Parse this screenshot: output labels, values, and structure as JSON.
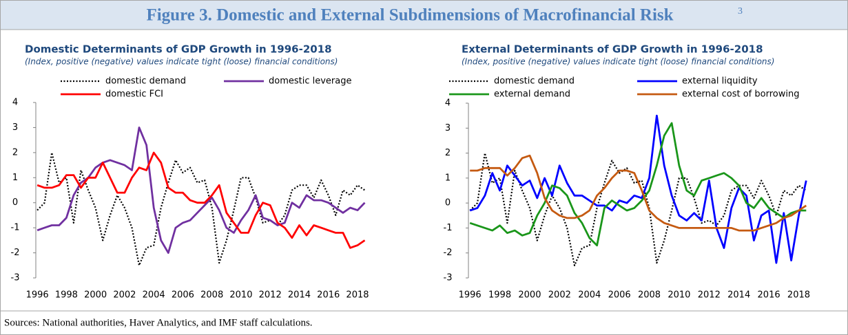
{
  "title": "Figure 3. Domestic and External Subdimensions of Macrofinancial Risk",
  "footnote_marker": "3",
  "source": "Sources: National authorities, Haver Analytics, and IMF staff calculations.",
  "chart_data": [
    {
      "type": "line",
      "title": "Domestic Determinants of GDP Growth in 1996-2018",
      "subtitle": "(Index, positive (negative) values indicate tight (loose) financial conditions)",
      "x": [
        1996,
        1996.5,
        1997,
        1997.5,
        1998,
        1998.5,
        1999,
        1999.5,
        2000,
        2000.5,
        2001,
        2001.5,
        2002,
        2002.5,
        2003,
        2003.5,
        2004,
        2004.5,
        2005,
        2005.5,
        2006,
        2006.5,
        2007,
        2007.5,
        2008,
        2008.5,
        2009,
        2009.5,
        2010,
        2010.5,
        2011,
        2011.5,
        2012,
        2012.5,
        2013,
        2013.5,
        2014,
        2014.5,
        2015,
        2015.5,
        2016,
        2016.5,
        2017,
        2017.5,
        2018,
        2018.5
      ],
      "series": [
        {
          "name": "domestic demand",
          "color": "#000000",
          "style": "dotted",
          "values": [
            -0.3,
            0,
            2.0,
            0.8,
            1.0,
            -0.8,
            1.3,
            0.5,
            -0.2,
            -1.5,
            -0.5,
            0.3,
            -0.2,
            -1.0,
            -2.5,
            -1.8,
            -1.7,
            -0.2,
            0.8,
            1.7,
            1.2,
            1.4,
            0.8,
            0.9,
            -0.2,
            -2.4,
            -1.5,
            -0.3,
            1.0,
            1.0,
            0.2,
            -0.8,
            -0.7,
            -0.9,
            -0.5,
            0.5,
            0.7,
            0.7,
            0.2,
            0.9,
            0.3,
            -0.5,
            0.5,
            0.3,
            0.7,
            0.5
          ]
        },
        {
          "name": "domestic leverage",
          "color": "#7030a0",
          "style": "solid",
          "values": [
            -1.1,
            -1.0,
            -0.9,
            -0.9,
            -0.6,
            0.3,
            0.8,
            1.0,
            1.4,
            1.6,
            1.7,
            1.6,
            1.5,
            1.3,
            3.0,
            2.3,
            -0.2,
            -1.5,
            -2.0,
            -1.0,
            -0.8,
            -0.7,
            -0.4,
            -0.1,
            0.2,
            -0.3,
            -1.0,
            -1.2,
            -0.7,
            -0.3,
            0.3,
            -0.6,
            -0.7,
            -0.9,
            -0.8,
            0.0,
            -0.2,
            0.3,
            0.1,
            0.1,
            0.0,
            -0.2,
            -0.4,
            -0.2,
            -0.3,
            0.0
          ]
        },
        {
          "name": "domestic FCI",
          "color": "#ff0000",
          "style": "solid",
          "values": [
            0.7,
            0.6,
            0.6,
            0.7,
            1.1,
            1.1,
            0.6,
            1.0,
            1.0,
            1.6,
            1.0,
            0.4,
            0.4,
            1.0,
            1.4,
            1.3,
            2.0,
            1.6,
            0.6,
            0.4,
            0.4,
            0.1,
            0.0,
            0.0,
            0.3,
            0.7,
            -0.4,
            -0.8,
            -1.2,
            -1.2,
            -0.5,
            0.0,
            -0.1,
            -0.8,
            -1.0,
            -1.4,
            -0.9,
            -1.3,
            -0.9,
            -1.0,
            -1.1,
            -1.2,
            -1.2,
            -1.8,
            -1.7,
            -1.5
          ]
        }
      ],
      "xlim": [
        1995.9,
        2018.9
      ],
      "ylim": [
        -3,
        4
      ],
      "xticks": [
        1996,
        1998,
        2000,
        2002,
        2004,
        2006,
        2008,
        2010,
        2012,
        2014,
        2016,
        2018
      ],
      "yticks": [
        -3,
        -2,
        -1,
        0,
        1,
        2,
        3,
        4
      ]
    },
    {
      "type": "line",
      "title": "External Determinants of GDP Growth in 1996-2018",
      "subtitle": "(Index, positive (negative) values indicate tight (loose) financial conditions)",
      "x": [
        1996,
        1996.5,
        1997,
        1997.5,
        1998,
        1998.5,
        1999,
        1999.5,
        2000,
        2000.5,
        2001,
        2001.5,
        2002,
        2002.5,
        2003,
        2003.5,
        2004,
        2004.5,
        2005,
        2005.5,
        2006,
        2006.5,
        2007,
        2007.5,
        2008,
        2008.5,
        2009,
        2009.5,
        2010,
        2010.5,
        2011,
        2011.5,
        2012,
        2012.5,
        2013,
        2013.5,
        2014,
        2014.5,
        2015,
        2015.5,
        2016,
        2016.5,
        2017,
        2017.5,
        2018,
        2018.5
      ],
      "series": [
        {
          "name": "domestic demand",
          "color": "#000000",
          "style": "dotted",
          "values": [
            -0.3,
            0,
            2.0,
            0.8,
            1.0,
            -0.8,
            1.3,
            0.5,
            -0.2,
            -1.5,
            -0.5,
            0.3,
            -0.2,
            -1.0,
            -2.5,
            -1.8,
            -1.7,
            -0.2,
            0.8,
            1.7,
            1.2,
            1.4,
            0.8,
            0.9,
            -0.2,
            -2.4,
            -1.5,
            -0.3,
            1.0,
            1.0,
            0.2,
            -0.8,
            -0.7,
            -0.9,
            -0.5,
            0.5,
            0.7,
            0.7,
            0.2,
            0.9,
            0.3,
            -0.5,
            0.5,
            0.3,
            0.7,
            0.5
          ]
        },
        {
          "name": "external liquidity",
          "color": "#0000ff",
          "style": "solid",
          "values": [
            -0.3,
            -0.2,
            0.3,
            1.2,
            0.5,
            1.5,
            1.1,
            0.7,
            0.9,
            0.2,
            1.0,
            0.3,
            1.5,
            0.8,
            0.3,
            0.3,
            0.1,
            -0.1,
            -0.1,
            -0.3,
            0.1,
            0.0,
            0.3,
            0.2,
            1.0,
            3.5,
            1.5,
            0.3,
            -0.5,
            -0.7,
            -0.4,
            -0.7,
            0.9,
            -1.0,
            -1.8,
            -0.2,
            0.6,
            0.3,
            -1.5,
            -0.5,
            -0.3,
            -2.4,
            -0.4,
            -2.3,
            -0.5,
            0.9
          ]
        },
        {
          "name": "external demand",
          "color": "#1a961a",
          "style": "solid",
          "values": [
            -0.8,
            -0.9,
            -1.0,
            -1.1,
            -0.9,
            -1.2,
            -1.1,
            -1.3,
            -1.2,
            -0.5,
            0.0,
            0.7,
            0.6,
            0.3,
            -0.4,
            -0.8,
            -1.4,
            -1.7,
            -0.2,
            0.1,
            -0.1,
            -0.3,
            -0.2,
            0.1,
            0.5,
            1.5,
            2.7,
            3.2,
            1.5,
            0.5,
            0.3,
            0.9,
            1.0,
            1.1,
            1.2,
            1.0,
            0.7,
            0.0,
            -0.2,
            0.2,
            -0.2,
            -0.4,
            -0.6,
            -0.4,
            -0.3,
            -0.3
          ]
        },
        {
          "name": "external cost of borrowing",
          "color": "#c55a11",
          "style": "solid",
          "values": [
            1.3,
            1.3,
            1.4,
            1.4,
            1.4,
            1.1,
            1.4,
            1.8,
            1.9,
            1.2,
            0.2,
            -0.3,
            -0.5,
            -0.6,
            -0.6,
            -0.5,
            -0.3,
            0.3,
            0.6,
            1.0,
            1.3,
            1.3,
            1.2,
            0.5,
            -0.3,
            -0.6,
            -0.8,
            -0.9,
            -1.0,
            -1.0,
            -1.0,
            -1.0,
            -1.0,
            -1.0,
            -1.0,
            -1.0,
            -1.1,
            -1.1,
            -1.1,
            -1.0,
            -0.9,
            -0.8,
            -0.6,
            -0.5,
            -0.3,
            -0.1
          ]
        }
      ],
      "xlim": [
        1995.9,
        2018.9
      ],
      "ylim": [
        -3,
        4
      ],
      "xticks": [
        1996,
        1998,
        2000,
        2002,
        2004,
        2006,
        2008,
        2010,
        2012,
        2014,
        2016,
        2018
      ],
      "yticks": [
        -3,
        -2,
        -1,
        0,
        1,
        2,
        3,
        4
      ]
    }
  ]
}
